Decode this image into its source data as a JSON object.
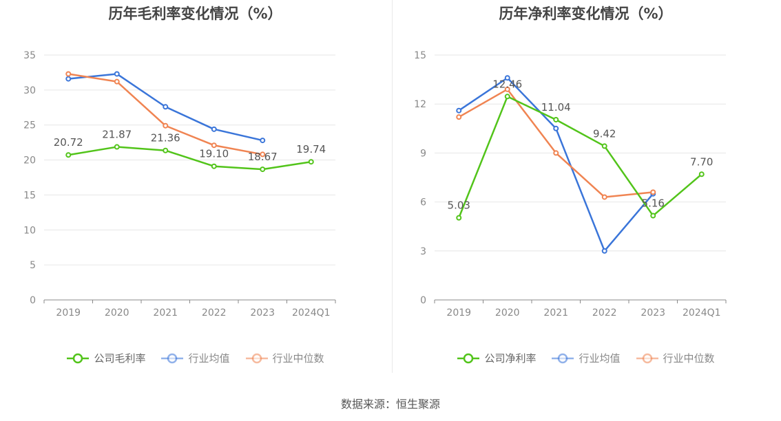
{
  "footer": {
    "source": "数据来源：恒生聚源"
  },
  "chart_data": [
    {
      "type": "line",
      "title": "历年毛利率变化情况（%）",
      "categories": [
        "2019",
        "2020",
        "2021",
        "2022",
        "2023",
        "2024Q1"
      ],
      "ylim": [
        0,
        35
      ],
      "yticks": [
        "0",
        "5",
        "10",
        "15",
        "20",
        "25",
        "30",
        "35"
      ],
      "grid": true,
      "legend_position": "bottom-center",
      "series": [
        {
          "name": "公司毛利率",
          "color": "#52c41a",
          "values": [
            20.72,
            21.87,
            21.36,
            19.1,
            18.67,
            19.74
          ],
          "labels": [
            "20.72",
            "21.87",
            "21.36",
            "19.10",
            "18.67",
            "19.74"
          ]
        },
        {
          "name": "行业均值",
          "color": "#3a75d9",
          "values": [
            31.6,
            32.3,
            27.6,
            24.4,
            22.8,
            null
          ]
        },
        {
          "name": "行业中位数",
          "color": "#f08452",
          "values": [
            32.3,
            31.2,
            24.9,
            22.1,
            20.8,
            null
          ]
        }
      ]
    },
    {
      "type": "line",
      "title": "历年净利率变化情况（%）",
      "categories": [
        "2019",
        "2020",
        "2021",
        "2022",
        "2023",
        "2024Q1"
      ],
      "ylim": [
        0,
        15
      ],
      "yticks": [
        "0",
        "3",
        "6",
        "9",
        "12",
        "15"
      ],
      "grid": true,
      "legend_position": "bottom-center",
      "series": [
        {
          "name": "公司净利率",
          "color": "#52c41a",
          "values": [
            5.03,
            12.46,
            11.04,
            9.42,
            5.16,
            7.7
          ],
          "labels": [
            "5.03",
            "12.46",
            "11.04",
            "9.42",
            "5.16",
            "7.70"
          ]
        },
        {
          "name": "行业均值",
          "color": "#3a75d9",
          "values": [
            11.6,
            13.6,
            10.5,
            3.0,
            6.5,
            null
          ]
        },
        {
          "name": "行业中位数",
          "color": "#f08452",
          "values": [
            11.2,
            12.9,
            9.0,
            6.3,
            6.6,
            null
          ]
        }
      ]
    }
  ]
}
